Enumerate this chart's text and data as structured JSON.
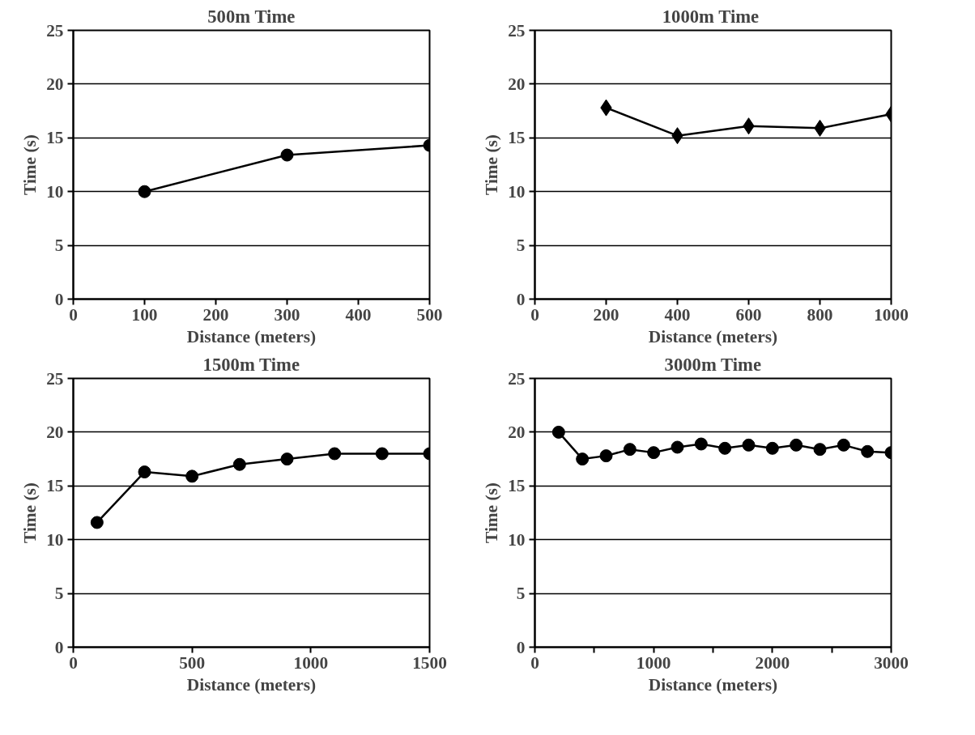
{
  "chart_data": [
    {
      "type": "line",
      "title": "500m Time",
      "xlabel": "Distance (meters)",
      "ylabel": "Time (s)",
      "x": [
        100,
        300,
        500
      ],
      "series": [
        {
          "color": "#000000",
          "values": [
            10.0,
            13.4,
            14.3
          ]
        }
      ],
      "xlim": [
        0,
        500
      ],
      "xticks": [
        0,
        100,
        200,
        300,
        400,
        500
      ],
      "ylim": [
        0,
        25
      ],
      "yticks": [
        0,
        5,
        10,
        15,
        20,
        25
      ],
      "grid": "y",
      "marker": "circle"
    },
    {
      "type": "line",
      "title": "1000m  Time",
      "xlabel": "Distance (meters)",
      "ylabel": "Time (s)",
      "x": [
        200,
        400,
        600,
        800,
        1000
      ],
      "series": [
        {
          "color": "#000000",
          "values": [
            17.8,
            15.2,
            16.1,
            15.9,
            17.2
          ]
        }
      ],
      "xlim": [
        0,
        1000
      ],
      "xticks": [
        0,
        200,
        400,
        600,
        800,
        1000
      ],
      "ylim": [
        0,
        25
      ],
      "yticks": [
        0,
        5,
        10,
        15,
        20,
        25
      ],
      "grid": "y",
      "marker": "diamond"
    },
    {
      "type": "line",
      "title": "1500m Time",
      "xlabel": "Distance (meters)",
      "ylabel": "Time (s)",
      "x": [
        100,
        300,
        500,
        700,
        900,
        1100,
        1300,
        1500
      ],
      "series": [
        {
          "color": "#000000",
          "values": [
            11.6,
            16.3,
            15.9,
            17.0,
            17.5,
            18.0,
            18.0,
            18.0
          ]
        }
      ],
      "xlim": [
        0,
        1500
      ],
      "xticks": [
        0,
        500,
        1000,
        1500
      ],
      "ylim": [
        0,
        25
      ],
      "yticks": [
        0,
        5,
        10,
        15,
        20,
        25
      ],
      "grid": "y",
      "marker": "circle"
    },
    {
      "type": "line",
      "title": "3000m Time",
      "xlabel": "Distance (meters)",
      "ylabel": "Time (s)",
      "x": [
        200,
        400,
        600,
        800,
        1000,
        1200,
        1400,
        1600,
        1800,
        2000,
        2200,
        2400,
        2600,
        2800,
        3000
      ],
      "series": [
        {
          "color": "#000000",
          "values": [
            20.0,
            17.5,
            17.8,
            18.4,
            18.1,
            18.6,
            18.9,
            18.5,
            18.8,
            18.5,
            18.8,
            18.4,
            18.8,
            18.2,
            18.1
          ]
        }
      ],
      "xlim": [
        0,
        3000
      ],
      "xticks": [
        0,
        {
          "value": 500,
          "label": null
        },
        1000,
        {
          "value": 1500,
          "label": null
        },
        2000,
        {
          "value": 2500,
          "label": null
        },
        3000
      ],
      "ylim": [
        0,
        25
      ],
      "yticks": [
        0,
        5,
        10,
        15,
        20,
        25
      ],
      "grid": "y",
      "marker": "circle"
    }
  ]
}
